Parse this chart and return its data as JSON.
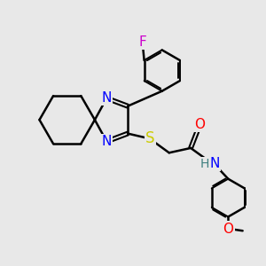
{
  "background_color": "#e8e8e8",
  "atom_colors": {
    "C": "#000000",
    "N": "#0000ff",
    "O": "#ff0000",
    "S": "#cccc00",
    "F": "#cc00cc",
    "H": "#408080"
  },
  "bond_color": "#000000",
  "bond_width": 1.8,
  "font_size": 10,
  "fig_size": [
    3.0,
    3.0
  ],
  "dpi": 100
}
